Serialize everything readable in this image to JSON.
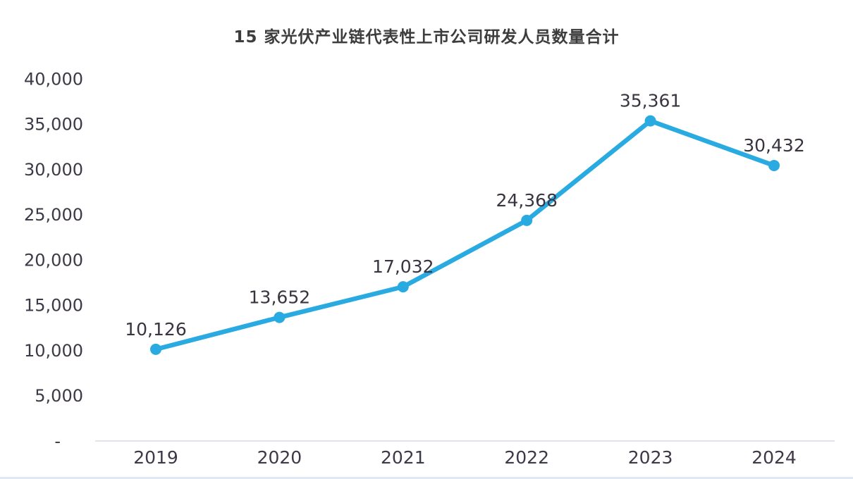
{
  "chart_data": {
    "type": "line",
    "title": "15 家光伏产业链代表性上市公司研发人员数量合计",
    "categories": [
      "2019",
      "2020",
      "2021",
      "2022",
      "2023",
      "2024"
    ],
    "values": [
      10126,
      13652,
      17032,
      24368,
      35361,
      30432
    ],
    "data_labels": [
      "10,126",
      "13,652",
      "17,032",
      "24,368",
      "35,361",
      "30,432"
    ],
    "xlabel": "",
    "ylabel": "",
    "ylim": [
      0,
      40000
    ],
    "y_tick_step": 5000,
    "y_tick_labels": [
      "-",
      "5,000",
      "10,000",
      "15,000",
      "20,000",
      "25,000",
      "30,000",
      "35,000",
      "40,000"
    ],
    "grid": false,
    "legend": "none",
    "marker": "circle"
  },
  "colors": {
    "line": "#29abe2",
    "marker": "#29abe2",
    "tick_text": "#3e3847",
    "data_label_text": "#3a3440",
    "title_text": "#3d3d3d",
    "axis_line": "#d9dae2",
    "background": "#ffffff",
    "bottom_edge_tint": "#dfe9f6"
  }
}
